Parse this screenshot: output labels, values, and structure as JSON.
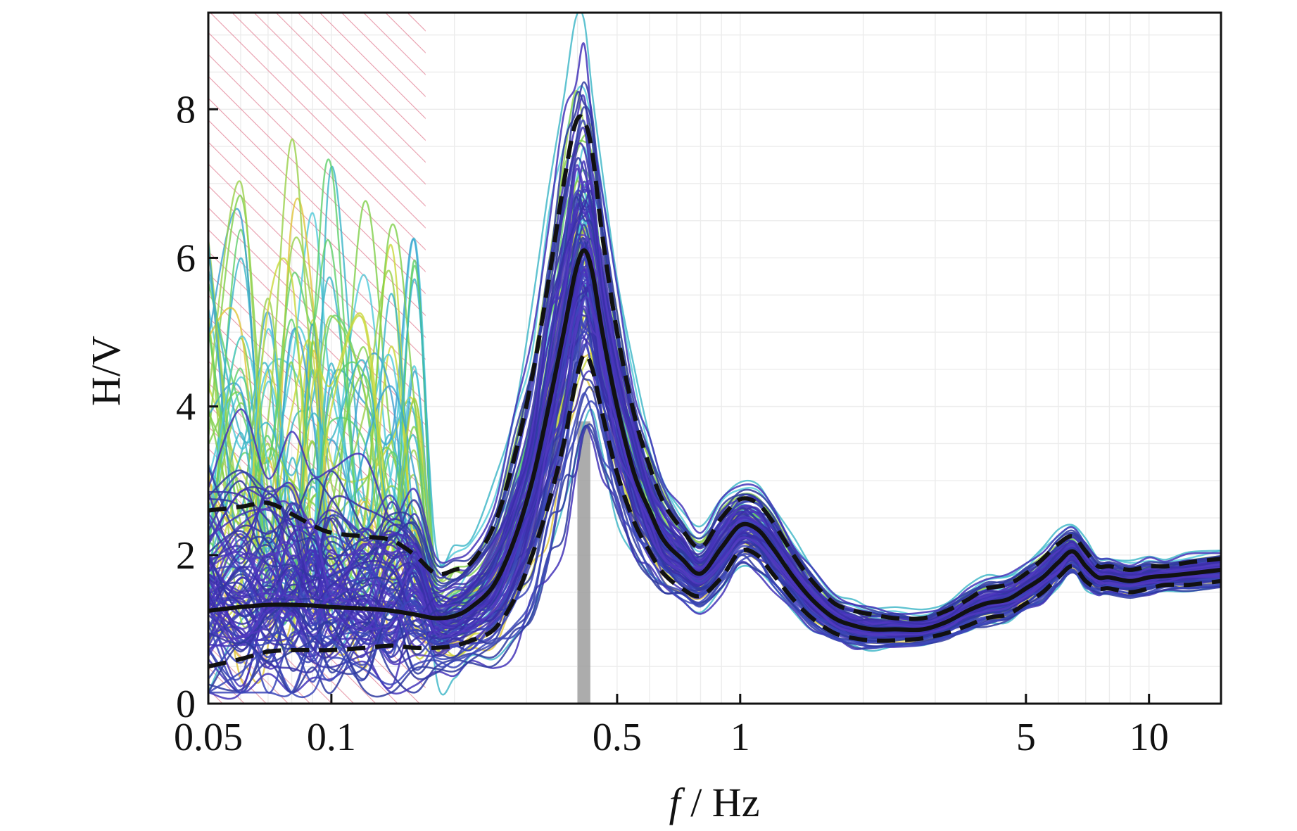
{
  "chart_data": {
    "type": "line",
    "title": "",
    "xlabel_var": "f",
    "xlabel_unit": " / Hz",
    "ylabel": "H/V",
    "x_scale": "log",
    "xlim": [
      0.05,
      15
    ],
    "ylim": [
      0,
      9.3
    ],
    "x_ticks": [
      {
        "value": 0.05,
        "label": "0.05"
      },
      {
        "value": 0.1,
        "label": "0.1"
      },
      {
        "value": 0.5,
        "label": "0.5"
      },
      {
        "value": 1,
        "label": "1"
      },
      {
        "value": 5,
        "label": "5"
      },
      {
        "value": 10,
        "label": "10"
      }
    ],
    "y_ticks": [
      {
        "value": 0,
        "label": "0"
      },
      {
        "value": 2,
        "label": "2"
      },
      {
        "value": 4,
        "label": "4"
      },
      {
        "value": 6,
        "label": "6"
      },
      {
        "value": 8,
        "label": "8"
      }
    ],
    "grid": true,
    "legend": "none",
    "rejected_band_hz": [
      0.05,
      0.17
    ],
    "peak_band_hz": [
      0.4,
      0.43
    ],
    "x": [
      0.05,
      0.06,
      0.07,
      0.08,
      0.09,
      0.1,
      0.12,
      0.14,
      0.16,
      0.18,
      0.2,
      0.22,
      0.25,
      0.28,
      0.31,
      0.34,
      0.37,
      0.395,
      0.415,
      0.435,
      0.46,
      0.5,
      0.55,
      0.6,
      0.65,
      0.72,
      0.8,
      0.9,
      1.0,
      1.1,
      1.2,
      1.35,
      1.5,
      1.7,
      1.9,
      2.1,
      2.4,
      2.8,
      3.2,
      3.6,
      4.0,
      4.5,
      5.0,
      5.5,
      6.0,
      6.5,
      7.0,
      7.5,
      8.0,
      9.0,
      10.0,
      11.0,
      12.5,
      15.0
    ],
    "series": [
      {
        "kind": "mean",
        "values": [
          1.25,
          1.3,
          1.33,
          1.33,
          1.32,
          1.3,
          1.28,
          1.25,
          1.2,
          1.15,
          1.18,
          1.3,
          1.6,
          2.2,
          3.0,
          4.0,
          5.0,
          5.8,
          6.1,
          5.8,
          5.0,
          4.0,
          3.1,
          2.6,
          2.2,
          1.95,
          1.75,
          2.1,
          2.4,
          2.35,
          2.1,
          1.7,
          1.4,
          1.15,
          1.05,
          1.0,
          1.0,
          1.0,
          1.1,
          1.25,
          1.35,
          1.4,
          1.55,
          1.7,
          1.9,
          2.05,
          1.85,
          1.7,
          1.7,
          1.65,
          1.7,
          1.72,
          1.75,
          1.8
        ]
      },
      {
        "kind": "mean+std",
        "values": [
          2.6,
          2.65,
          2.7,
          2.55,
          2.4,
          2.3,
          2.25,
          2.2,
          2.0,
          1.75,
          1.8,
          1.9,
          2.4,
          3.3,
          4.4,
          5.7,
          7.0,
          7.8,
          7.85,
          7.4,
          6.3,
          5.0,
          3.9,
          3.2,
          2.7,
          2.35,
          2.1,
          2.5,
          2.75,
          2.7,
          2.45,
          2.0,
          1.65,
          1.35,
          1.25,
          1.2,
          1.15,
          1.15,
          1.25,
          1.4,
          1.55,
          1.6,
          1.75,
          1.95,
          2.15,
          2.25,
          2.05,
          1.85,
          1.85,
          1.8,
          1.85,
          1.85,
          1.9,
          1.95
        ]
      },
      {
        "kind": "mean-std",
        "values": [
          0.5,
          0.6,
          0.7,
          0.72,
          0.72,
          0.72,
          0.75,
          0.78,
          0.75,
          0.75,
          0.78,
          0.85,
          1.0,
          1.4,
          2.0,
          2.7,
          3.5,
          4.3,
          4.7,
          4.5,
          3.9,
          3.1,
          2.45,
          2.05,
          1.75,
          1.55,
          1.45,
          1.7,
          2.05,
          2.0,
          1.75,
          1.4,
          1.15,
          0.95,
          0.88,
          0.85,
          0.85,
          0.88,
          0.95,
          1.05,
          1.15,
          1.2,
          1.35,
          1.5,
          1.7,
          1.85,
          1.65,
          1.55,
          1.55,
          1.5,
          1.55,
          1.6,
          1.6,
          1.65
        ]
      }
    ]
  }
}
